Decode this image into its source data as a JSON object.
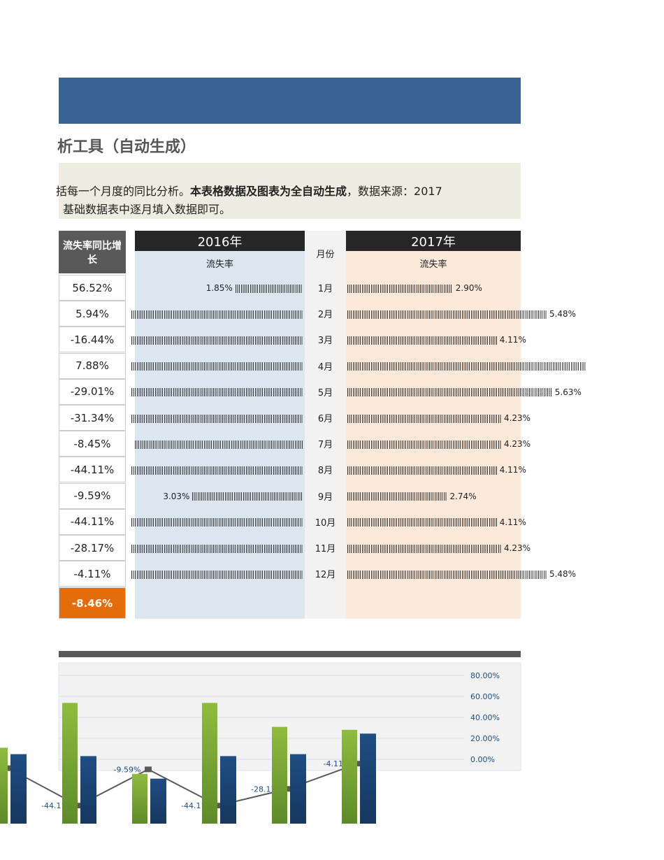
{
  "header": {
    "title": "析工具（自动生成）",
    "description": {
      "line1": [
        "括每一个月度的同比分析。",
        "本表格数据及图表为全自动生成",
        "，数据来源：2017"
      ],
      "line2": "基础数据表中逐月填入数据即可。"
    }
  },
  "table": {
    "yoy_header": "流失率同比增长",
    "year_2016": "2016年",
    "year_2017": "2017年",
    "sub_header_2016": "流失率",
    "sub_header_2017": "流失率",
    "month_header": "月份",
    "months": [
      "1月",
      "2月",
      "3月",
      "4月",
      "5月",
      "6月",
      "7月",
      "8月",
      "9月",
      "10月",
      "11月",
      "12月"
    ],
    "yoy": {
      "values": [
        56.52,
        5.94,
        -16.44,
        7.88,
        -29.01,
        -31.34,
        -8.45,
        -44.11,
        -9.59,
        -44.11,
        -28.17,
        -4.11
      ],
      "value_labels": [
        "56.52%",
        "5.94%",
        "-16.44%",
        "7.88%",
        "-29.01%",
        "-31.34%",
        "-8.45%",
        "-44.11%",
        "-9.59%",
        "-44.11%",
        "-28.17%",
        "-4.11%"
      ]
    },
    "total": {
      "value": -8.46,
      "label": "-8.46%"
    },
    "rate_2016": {
      "values": [
        1.85,
        5.17,
        4.92,
        6.08,
        7.93,
        6.16,
        4.62,
        7.35,
        3.03,
        7.35,
        5.89,
        5.71
      ],
      "value_labels": [
        "1.85%",
        null,
        null,
        null,
        null,
        null,
        null,
        null,
        "3.03%",
        null,
        null,
        null
      ]
    },
    "rate_2017": {
      "values": [
        2.9,
        5.48,
        4.11,
        6.56,
        5.63,
        4.23,
        4.23,
        4.11,
        2.74,
        4.11,
        4.23,
        5.48
      ],
      "value_labels": [
        "2.90%",
        "5.48%",
        "4.11%",
        null,
        "5.63%",
        "4.23%",
        "4.23%",
        "4.11%",
        "2.74%",
        "4.11%",
        "4.23%",
        "5.48%"
      ]
    }
  },
  "chart": {
    "y2ticks": [
      {
        "value": 80,
        "label": "80.00%"
      },
      {
        "value": 60,
        "label": "60.00%"
      },
      {
        "value": 40,
        "label": "40.00%"
      },
      {
        "value": 20,
        "label": "20.00%"
      },
      {
        "value": 0,
        "label": "0.00%"
      }
    ],
    "colors": {
      "rate_2016": "#8fbc3f",
      "rate_2017": "#1f4e84",
      "yoy": "#595959"
    }
  }
}
